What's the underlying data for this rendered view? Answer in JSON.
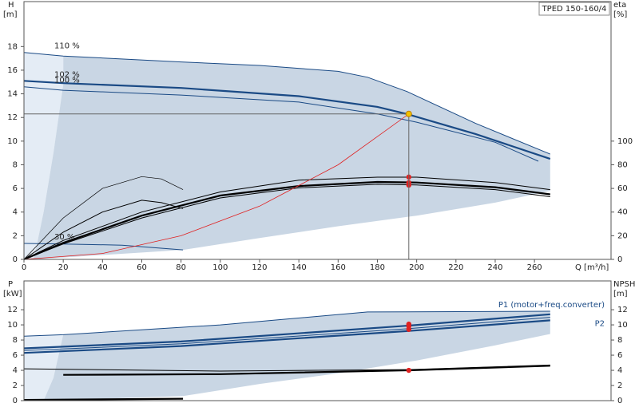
{
  "chart_data": [
    {
      "type": "line",
      "title": "TPED 150-160/4",
      "y_label": "H",
      "y_unit": "[m]",
      "y2_label": "eta",
      "y2_unit": "[%]",
      "x_label": "Q [m³/h]",
      "xlim": [
        0,
        299
      ],
      "ylim": [
        0,
        21.8
      ],
      "y2lim": [
        0,
        218
      ],
      "xticks": [
        0,
        20,
        40,
        60,
        80,
        100,
        120,
        140,
        160,
        180,
        200,
        220,
        240,
        260
      ],
      "yticks": [
        0,
        2,
        4,
        6,
        8,
        10,
        12,
        14,
        16,
        18
      ],
      "y2ticks": [
        0,
        20,
        40,
        60,
        80,
        100
      ],
      "series": [
        {
          "kind": "area",
          "color": "#e4ecf5",
          "x": [
            0,
            0,
            20,
            20,
            15,
            10,
            5
          ],
          "values": [
            0,
            17.5,
            17.2,
            14.8,
            9,
            4,
            0
          ]
        },
        {
          "kind": "area",
          "color": "#c9d6e4",
          "x": [
            5,
            10,
            15,
            20,
            20,
            80,
            120,
            160,
            175,
            195,
            230,
            268,
            268,
            240,
            200,
            160,
            120,
            81
          ],
          "values": [
            0,
            4,
            9,
            14.8,
            17.2,
            16.7,
            16.4,
            15.9,
            15.4,
            14.2,
            11.5,
            8.9,
            5.8,
            4.8,
            3.7,
            2.8,
            1.8,
            0.8
          ]
        },
        {
          "kind": "line",
          "name": "110 %",
          "color": "#1a4a85",
          "width": 1,
          "x": [
            0,
            20,
            80,
            120,
            160,
            175,
            195,
            230,
            268
          ],
          "values": [
            17.5,
            17.2,
            16.7,
            16.4,
            15.9,
            15.4,
            14.2,
            11.5,
            8.9
          ]
        },
        {
          "kind": "line",
          "name": "102 %",
          "color": "#1a4a85",
          "width": 2.2,
          "x": [
            0,
            20,
            80,
            140,
            180,
            195,
            230,
            268
          ],
          "values": [
            15.1,
            14.9,
            14.5,
            13.8,
            12.9,
            12.3,
            10.6,
            8.5
          ]
        },
        {
          "kind": "line",
          "name": "100 %",
          "color": "#1a4a85",
          "width": 1,
          "x": [
            0,
            20,
            80,
            140,
            180,
            200,
            240,
            262
          ],
          "values": [
            14.6,
            14.3,
            13.9,
            13.3,
            12.3,
            11.6,
            9.9,
            8.3
          ]
        },
        {
          "kind": "line",
          "name": "30 %",
          "color": "#1a4a85",
          "width": 1,
          "x": [
            0,
            20,
            50,
            81
          ],
          "values": [
            1.35,
            1.3,
            1.2,
            0.8
          ]
        },
        {
          "kind": "line",
          "axis": "y2",
          "color": "#000000",
          "width": 1,
          "x": [
            0,
            20,
            60,
            100,
            140,
            180,
            200,
            240,
            268
          ],
          "values": [
            0,
            16,
            40,
            57,
            67,
            69.5,
            69.5,
            65,
            59
          ]
        },
        {
          "kind": "line",
          "axis": "y2",
          "color": "#000000",
          "width": 2.2,
          "x": [
            0,
            20,
            60,
            100,
            140,
            180,
            200,
            240,
            268
          ],
          "values": [
            0,
            14,
            37,
            54,
            62,
            65.5,
            65,
            61,
            55
          ]
        },
        {
          "kind": "line",
          "axis": "y2",
          "color": "#000000",
          "width": 1,
          "x": [
            0,
            20,
            60,
            100,
            140,
            180,
            200,
            240,
            268
          ],
          "values": [
            0,
            13,
            35,
            52,
            60.5,
            63.5,
            63,
            59,
            53
          ]
        },
        {
          "kind": "line",
          "axis": "y2",
          "color": "#000000",
          "width": 0.7,
          "x": [
            0,
            20,
            40,
            60,
            70,
            81
          ],
          "values": [
            0,
            35,
            60,
            70,
            68,
            59
          ]
        },
        {
          "kind": "line",
          "axis": "y2",
          "color": "#000000",
          "width": 1,
          "x": [
            0,
            20,
            40,
            60,
            70,
            81
          ],
          "values": [
            0,
            23,
            40,
            50,
            48,
            43
          ]
        },
        {
          "kind": "line",
          "color": "#e02020",
          "width": 0.8,
          "x": [
            0,
            40,
            80,
            120,
            160,
            196
          ],
          "values": [
            0,
            0.5,
            2,
            4.5,
            8,
            12.3
          ]
        },
        {
          "kind": "points",
          "axis": "y2",
          "color": "#e02020",
          "x": [
            196,
            196,
            196
          ],
          "values": [
            69.6,
            64.9,
            62.8
          ]
        }
      ],
      "duty_point": {
        "x": 196,
        "y": 12.3,
        "color": "#f2c200"
      }
    },
    {
      "type": "line",
      "y_label": "P",
      "y_unit": "[kW]",
      "y2_label": "NPSH",
      "y2_unit": "[m]",
      "xlim": [
        0,
        299
      ],
      "ylim": [
        0,
        15.8
      ],
      "y2lim": [
        0,
        15.8
      ],
      "yticks": [
        0,
        2,
        4,
        6,
        8,
        10,
        12
      ],
      "y2ticks": [
        0,
        2,
        4,
        6,
        8,
        10,
        12
      ],
      "series": [
        {
          "kind": "area",
          "color": "#e4ecf5",
          "x": [
            0,
            0,
            20,
            15,
            10
          ],
          "values": [
            0,
            8.5,
            8.7,
            3,
            0
          ]
        },
        {
          "kind": "area",
          "color": "#c9d6e4",
          "x": [
            10,
            15,
            20,
            100,
            175,
            268,
            268,
            240,
            200,
            160,
            120,
            81
          ],
          "values": [
            0,
            3,
            8.7,
            10,
            11.7,
            11.8,
            8.8,
            7.3,
            5.3,
            3.6,
            2.2,
            0.6
          ]
        },
        {
          "kind": "line",
          "color": "#1a4a85",
          "width": 1,
          "x": [
            0,
            20,
            100,
            175,
            268
          ],
          "values": [
            8.5,
            8.7,
            10,
            11.7,
            11.8
          ]
        },
        {
          "kind": "line",
          "name": "P1 (motor+freq.converter)",
          "color": "#1a4a85",
          "width": 2.2,
          "x": [
            0,
            80,
            196,
            268
          ],
          "values": [
            6.9,
            7.8,
            9.9,
            11.4
          ]
        },
        {
          "kind": "line",
          "color": "#1a4a85",
          "width": 1,
          "x": [
            0,
            80,
            196,
            268
          ],
          "values": [
            6.6,
            7.5,
            9.5,
            11.0
          ]
        },
        {
          "kind": "line",
          "name": "P2",
          "color": "#1a4a85",
          "width": 2.2,
          "x": [
            0,
            80,
            196,
            268
          ],
          "values": [
            6.3,
            7.2,
            9.2,
            10.6
          ]
        },
        {
          "kind": "line",
          "axis": "y2",
          "color": "#000000",
          "width": 1,
          "x": [
            0,
            100,
            196,
            268
          ],
          "values": [
            4.2,
            3.9,
            4.1,
            4.7
          ]
        },
        {
          "kind": "line",
          "axis": "y2",
          "color": "#000000",
          "width": 2.2,
          "x": [
            20,
            100,
            196,
            268
          ],
          "values": [
            3.4,
            3.5,
            4.0,
            4.6
          ]
        },
        {
          "kind": "line",
          "color": "#000000",
          "width": 2.2,
          "x": [
            0,
            81
          ],
          "values": [
            0.1,
            0.25
          ]
        },
        {
          "kind": "points",
          "color": "#e02020",
          "x": [
            196,
            196,
            196
          ],
          "values": [
            10.1,
            9.8,
            9.4
          ]
        },
        {
          "kind": "points",
          "axis": "y2",
          "color": "#e02020",
          "x": [
            196
          ],
          "values": [
            4.0
          ]
        }
      ]
    }
  ]
}
